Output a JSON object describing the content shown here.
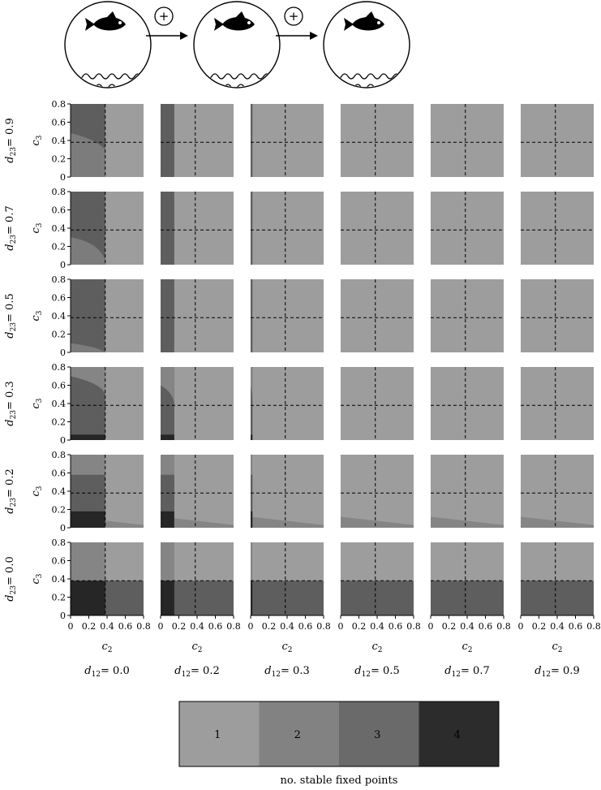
{
  "header": {
    "arrow_symbols": [
      "+",
      "+"
    ],
    "icon_names": [
      "fish-in-water-icon",
      "fish-in-water-icon",
      "fish-in-water-icon"
    ]
  },
  "chart_data": {
    "type": "heatmap",
    "description_axes": {
      "x_label": "c",
      "x_subscript": "2",
      "y_label": "c",
      "y_subscript": "3",
      "x_ticks": [
        "0",
        "0.2",
        "0.4",
        "0.6",
        "0.8"
      ],
      "y_ticks": [
        "0",
        "0.2",
        "0.4",
        "0.6",
        "0.8"
      ],
      "xlim": [
        0,
        0.8
      ],
      "ylim": [
        0,
        0.8
      ]
    },
    "threshold_lines": {
      "c2": 0.38,
      "c3": 0.38,
      "style": "dashed"
    },
    "columns": [
      {
        "label_var": "d",
        "label_sub": "12",
        "label_val": "= 0.0",
        "d12": 0.0
      },
      {
        "label_var": "d",
        "label_sub": "12",
        "label_val": "= 0.2",
        "d12": 0.2
      },
      {
        "label_var": "d",
        "label_sub": "12",
        "label_val": "= 0.3",
        "d12": 0.3
      },
      {
        "label_var": "d",
        "label_sub": "12",
        "label_val": "= 0.5",
        "d12": 0.5
      },
      {
        "label_var": "d",
        "label_sub": "12",
        "label_val": "= 0.7",
        "d12": 0.7
      },
      {
        "label_var": "d",
        "label_sub": "12",
        "label_val": "= 0.9",
        "d12": 0.9
      }
    ],
    "rows": [
      {
        "label_var": "d",
        "label_sub": "23",
        "label_val": "= 0.9",
        "d23": 0.9
      },
      {
        "label_var": "d",
        "label_sub": "23",
        "label_val": "= 0.7",
        "d23": 0.7
      },
      {
        "label_var": "d",
        "label_sub": "23",
        "label_val": "= 0.5",
        "d23": 0.5
      },
      {
        "label_var": "d",
        "label_sub": "23",
        "label_val": "= 0.3",
        "d23": 0.3
      },
      {
        "label_var": "d",
        "label_sub": "23",
        "label_val": "= 0.2",
        "d23": 0.2
      },
      {
        "label_var": "d",
        "label_sub": "23",
        "label_val": "= 0.0",
        "d23": 0.0
      }
    ],
    "legend": {
      "title": "no. stable fixed points",
      "items": [
        {
          "label": "1",
          "color": "#9d9d9d"
        },
        {
          "label": "2",
          "color": "#828282"
        },
        {
          "label": "3",
          "color": "#6a6a6a"
        },
        {
          "label": "4",
          "color": "#2c2c2c"
        }
      ]
    },
    "colors": {
      "level1": "#9d9d9d",
      "level2": "#858585",
      "level3": "#5e5e5e",
      "level4": "#262626",
      "level2_mid": "#7c7c7c"
    }
  }
}
